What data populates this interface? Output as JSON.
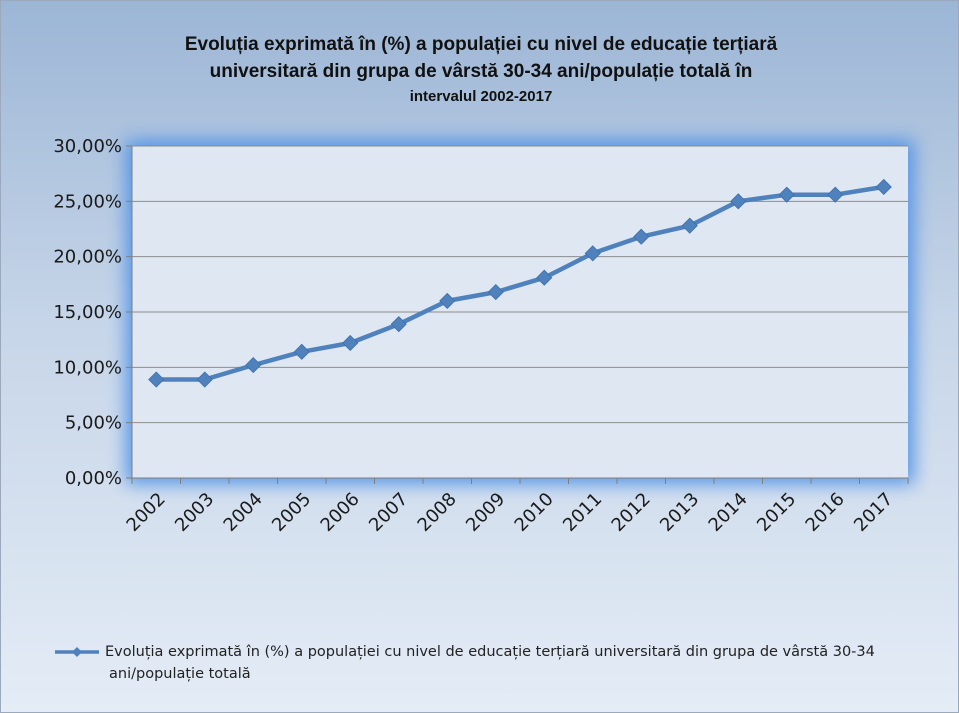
{
  "chart_data": {
    "type": "line",
    "title": "Evoluția exprimată în (%) a populației cu nivel de educație terțiară universitară din grupa de vârstă 30-34 ani/populație totală în intervalul 2002-2017",
    "title_lines": [
      "Evoluția exprimată în (%) a populației cu nivel de educație terțiară",
      "universitară din grupa de vârstă 30-34 ani/populație totală în",
      "intervalul 2002-2017"
    ],
    "categories": [
      "2002",
      "2003",
      "2004",
      "2005",
      "2006",
      "2007",
      "2008",
      "2009",
      "2010",
      "2011",
      "2012",
      "2013",
      "2014",
      "2015",
      "2016",
      "2017"
    ],
    "series": [
      {
        "name": "Evoluția exprimată în (%) a populației cu nivel de educație terțiară universitară din grupa de vârstă 30-34 ani/populație totală",
        "values": [
          8.9,
          8.9,
          10.2,
          11.4,
          12.2,
          13.9,
          16.0,
          16.8,
          18.1,
          20.3,
          21.8,
          22.8,
          25.0,
          25.6,
          25.6,
          26.3
        ],
        "color": "#4f81bd"
      }
    ],
    "yticks": [
      "0,00%",
      "5,00%",
      "10,00%",
      "15,00%",
      "20,00%",
      "25,00%",
      "30,00%"
    ],
    "ylim": [
      0,
      30
    ],
    "xlabel": "",
    "ylabel": "",
    "grid": true,
    "legend_position": "bottom",
    "plot_background": "#dfe7f2",
    "glow_color": "#4f92e6",
    "gridline_color": "#8c8c8c"
  }
}
